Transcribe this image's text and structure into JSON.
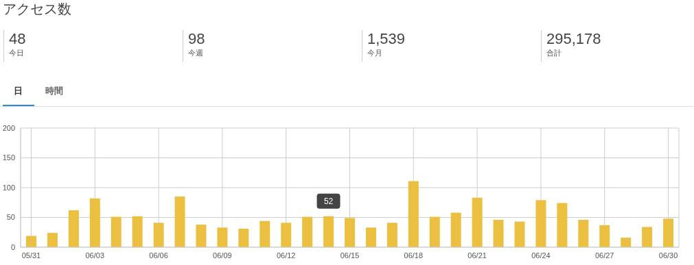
{
  "chart_data": {
    "type": "bar",
    "title": "アクセス数",
    "categories": [
      "05/31",
      null,
      null,
      "06/03",
      null,
      null,
      "06/06",
      null,
      null,
      "06/09",
      null,
      null,
      "06/12",
      null,
      null,
      "06/15",
      null,
      null,
      "06/18",
      null,
      null,
      "06/21",
      null,
      null,
      "06/24",
      null,
      null,
      "06/27",
      null,
      null,
      "06/30"
    ],
    "values": [
      19,
      24,
      62,
      82,
      51,
      52,
      41,
      85,
      38,
      33,
      31,
      44,
      41,
      51,
      52,
      49,
      33,
      41,
      111,
      51,
      58,
      83,
      46,
      43,
      79,
      74,
      46,
      37,
      16,
      34,
      48
    ],
    "color": "#ebc040",
    "ylim": [
      0,
      200
    ],
    "yticks": [
      0,
      50,
      100,
      150,
      200
    ],
    "grid": true,
    "annotations": [
      "48",
      "今日",
      "98",
      "今週",
      "1,539",
      "今月",
      "295,178",
      "合計",
      "日",
      "時間",
      {
        "text": "52",
        "y": 52
      }
    ]
  }
}
